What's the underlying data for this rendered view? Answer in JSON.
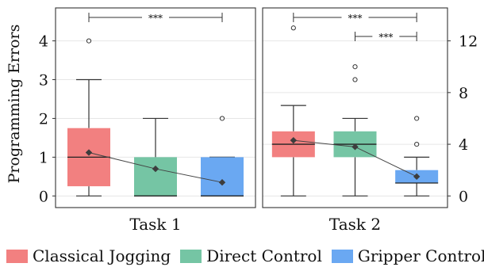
{
  "chart_data": {
    "type": "box",
    "ylabel": "Programming Errors",
    "legend_position": "bottom",
    "series": [
      {
        "name": "Classical Jogging",
        "color": "#f28080"
      },
      {
        "name": "Direct Control",
        "color": "#75c5a4"
      },
      {
        "name": "Gripper Control",
        "color": "#6aa8f2"
      }
    ],
    "panels": [
      {
        "label": "Task 1",
        "ylim": [
          -0.3,
          4.85
        ],
        "yticks": [
          0,
          1,
          2,
          3,
          4
        ],
        "y_axis_side": "left",
        "boxes": [
          {
            "series": "Classical Jogging",
            "min": 0,
            "q1": 0.25,
            "median": 1,
            "q3": 1.75,
            "max": 3,
            "mean": 1.12,
            "outliers": [
              4
            ]
          },
          {
            "series": "Direct Control",
            "min": 0,
            "q1": 0,
            "median": 0,
            "q3": 1,
            "max": 2,
            "mean": 0.7,
            "outliers": []
          },
          {
            "series": "Gripper Control",
            "min": 0,
            "q1": 0,
            "median": 0,
            "q3": 1,
            "max": 1,
            "mean": 0.35,
            "outliers": [
              2
            ]
          }
        ],
        "significance": [
          {
            "from": "Classical Jogging",
            "to": "Gripper Control",
            "label": "***"
          }
        ]
      },
      {
        "label": "Task 2",
        "ylim": [
          -0.9,
          14.55
        ],
        "yticks": [
          0,
          4,
          8,
          12
        ],
        "y_axis_side": "right",
        "boxes": [
          {
            "series": "Classical Jogging",
            "min": 0,
            "q1": 3,
            "median": 4,
            "q3": 5,
            "max": 7,
            "mean": 4.3,
            "outliers": [
              13
            ]
          },
          {
            "series": "Direct Control",
            "min": 0,
            "q1": 3,
            "median": 4,
            "q3": 5,
            "max": 6,
            "mean": 3.8,
            "outliers": [
              9,
              10
            ]
          },
          {
            "series": "Gripper Control",
            "min": 0,
            "q1": 1,
            "median": 1,
            "q3": 2,
            "max": 3,
            "mean": 1.5,
            "outliers": [
              4,
              6
            ]
          }
        ],
        "significance": [
          {
            "from": "Classical Jogging",
            "to": "Gripper Control",
            "label": "***"
          },
          {
            "from": "Direct Control",
            "to": "Gripper Control",
            "label": "***"
          }
        ]
      }
    ]
  }
}
